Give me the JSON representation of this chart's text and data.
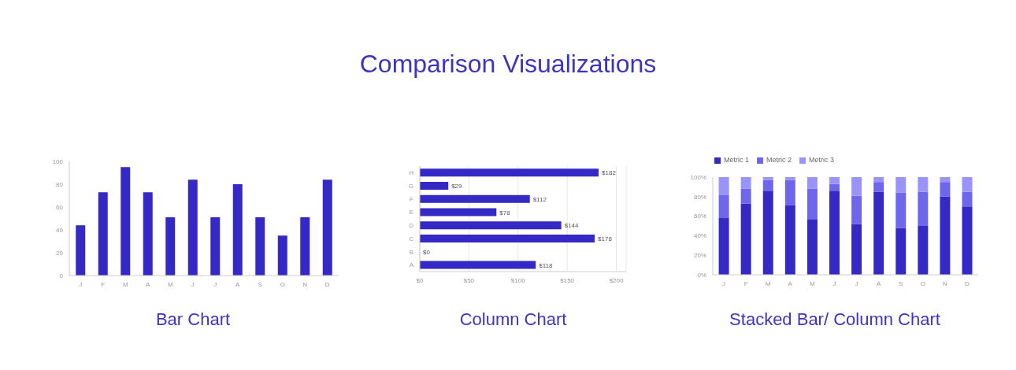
{
  "chart_data": [
    {
      "type": "other",
      "title": "Comparison Visualizations"
    },
    {
      "type": "bar",
      "title": "Bar Chart",
      "categories": [
        "J",
        "F",
        "M",
        "A",
        "M",
        "J",
        "J",
        "A",
        "S",
        "O",
        "N",
        "D"
      ],
      "values": [
        44,
        73,
        95,
        73,
        51,
        84,
        51,
        80,
        51,
        35,
        51,
        84
      ],
      "color": "#3429c4",
      "ylim": [
        0,
        100
      ],
      "yticks": [
        0,
        20,
        40,
        60,
        80,
        100
      ],
      "grid": false
    },
    {
      "type": "bar",
      "title": "Column Chart",
      "orientation": "horizontal",
      "categories": [
        "H",
        "G",
        "F",
        "E",
        "D",
        "C",
        "B",
        "A"
      ],
      "values": [
        182,
        29,
        112,
        78,
        144,
        178,
        0,
        118
      ],
      "value_labels": [
        "$182",
        "$29",
        "$112",
        "$78",
        "$144",
        "$178",
        "$0",
        "$118"
      ],
      "color": "#3429c4",
      "xlim": [
        0,
        210
      ],
      "xticks": [
        {
          "value": 0,
          "label": "$0"
        },
        {
          "value": 50,
          "label": "$50"
        },
        {
          "value": 100,
          "label": "$100"
        },
        {
          "value": 150,
          "label": "$150"
        },
        {
          "value": 200,
          "label": "$200"
        }
      ],
      "grid": "x"
    },
    {
      "type": "bar",
      "title": "Stacked Bar/ Column Chart",
      "stacked": true,
      "categories": [
        "J",
        "F",
        "M",
        "A",
        "M",
        "J",
        "J",
        "A",
        "S",
        "O",
        "N",
        "D"
      ],
      "series": [
        {
          "name": "Metric 1",
          "color": "#3429c4",
          "values": [
            58,
            73,
            86,
            71,
            57,
            86,
            52,
            85,
            48,
            50,
            80,
            70
          ]
        },
        {
          "name": "Metric 2",
          "color": "#6f66ee",
          "values": [
            24,
            15,
            11,
            26,
            31,
            7,
            29,
            10,
            36,
            35,
            15,
            15
          ]
        },
        {
          "name": "Metric 3",
          "color": "#9a93fb",
          "values": [
            18,
            12,
            3,
            3,
            12,
            7,
            19,
            5,
            16,
            15,
            5,
            15
          ]
        }
      ],
      "ylim": [
        0,
        100
      ],
      "yticks": [
        {
          "value": 0,
          "label": "0%"
        },
        {
          "value": 20,
          "label": "20%"
        },
        {
          "value": 40,
          "label": "40%"
        },
        {
          "value": 60,
          "label": "60%"
        },
        {
          "value": 80,
          "label": "80%"
        },
        {
          "value": 100,
          "label": "100%"
        }
      ],
      "legend": "top left",
      "grid": false
    }
  ]
}
